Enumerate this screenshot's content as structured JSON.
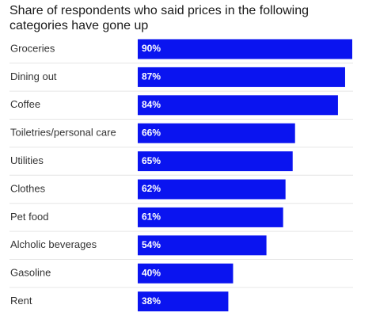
{
  "chart_data": {
    "type": "bar",
    "orientation": "horizontal",
    "title": "Share of respondents who said prices in the following categories have gone up",
    "categories": [
      "Groceries",
      "Dining out",
      "Coffee",
      "Toiletries/personal care",
      "Utilities",
      "Clothes",
      "Pet food",
      "Alcholic beverages",
      "Gasoline",
      "Rent"
    ],
    "values": [
      90,
      87,
      84,
      66,
      65,
      62,
      61,
      54,
      40,
      38
    ],
    "value_labels": [
      "90%",
      "87%",
      "84%",
      "66%",
      "65%",
      "62%",
      "61%",
      "54%",
      "40%",
      "38%"
    ],
    "xlim": [
      0,
      90
    ],
    "grid": false,
    "colors": {
      "bar": "#0a14f0",
      "divider": "#e6e6e6"
    }
  }
}
